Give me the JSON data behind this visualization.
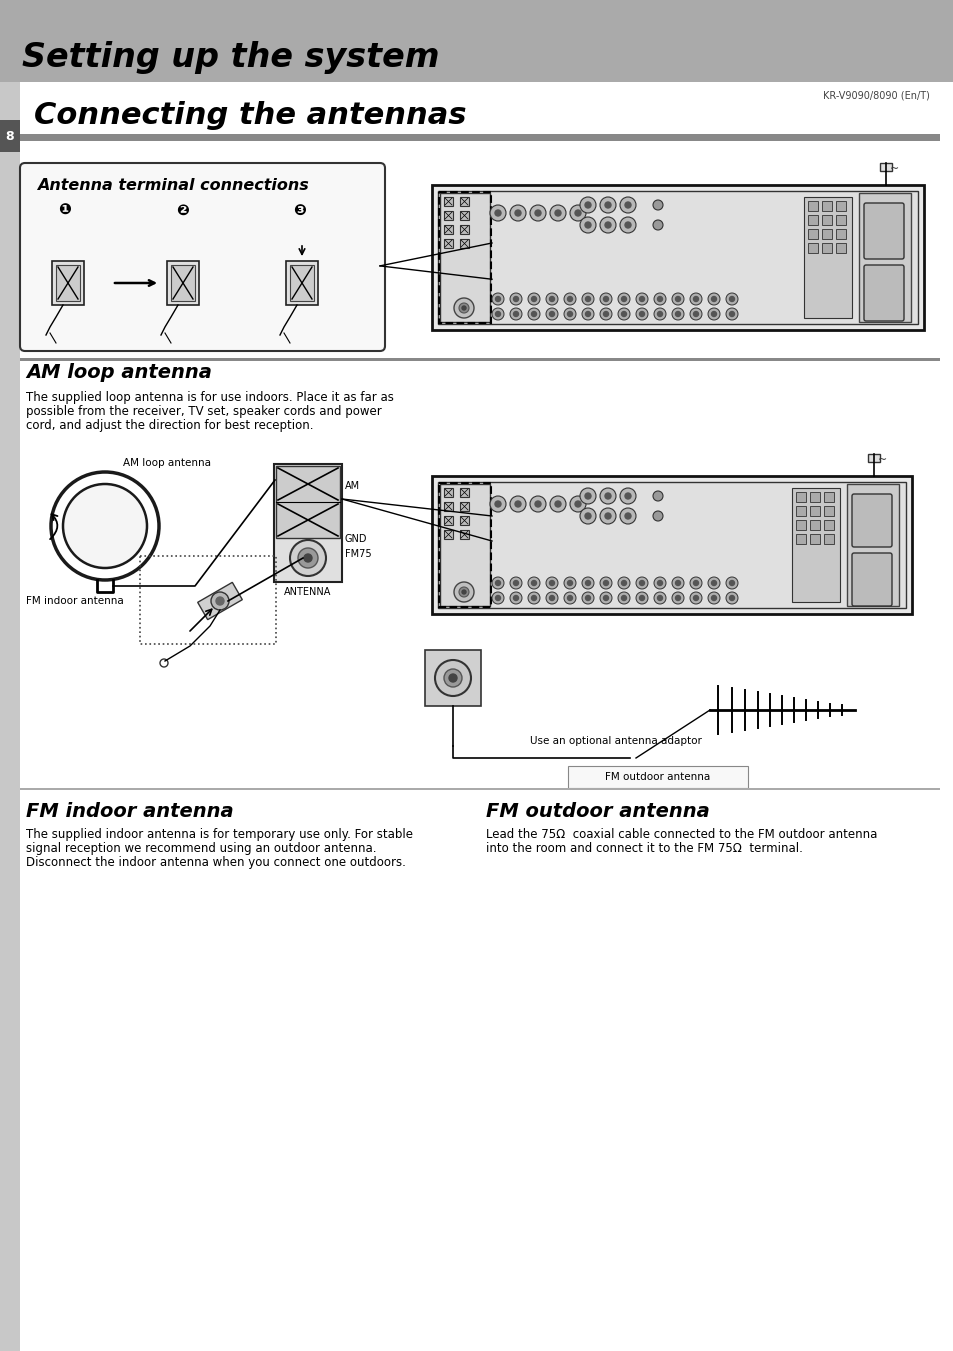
{
  "bg_color": "#ffffff",
  "header_bg": "#aaaaaa",
  "header_text": "Setting up the system",
  "header_text_color": "#000000",
  "model_text": "KR-V9090/8090 (En/T)",
  "page_num": "8",
  "section_title": "Connecting the antennas",
  "section_title_color": "#000000",
  "section_bar_color": "#888888",
  "box_title": "Antenna terminal connections",
  "circle_labels": [
    "❶",
    "❷",
    "❸"
  ],
  "am_title": "AM loop antenna",
  "am_body_lines": [
    "The supplied loop antenna is for use indoors. Place it as far as",
    "possible from the receiver, TV set, speaker cords and power",
    "cord, and adjust the direction for best reception."
  ],
  "fm_indoor_title": "FM indoor antenna",
  "fm_indoor_body_lines": [
    "The supplied indoor antenna is for temporary use only. For stable",
    "signal reception we recommend using an outdoor antenna.",
    "Disconnect the indoor antenna when you connect one outdoors."
  ],
  "fm_outdoor_title": "FM outdoor antenna",
  "fm_outdoor_body_lines": [
    "Lead the 75Ω  coaxial cable connected to the FM outdoor antenna",
    "into the room and connect it to the FM 75Ω  terminal."
  ],
  "fm_indoor_label": "FM indoor antenna",
  "am_loop_label": "AM loop antenna",
  "fm_outdoor_label": "FM outdoor antenna",
  "use_adaptor_label": "Use an optional antenna adaptor",
  "antenna_labels_right": [
    "AM",
    "GND",
    "FM75"
  ],
  "antenna_bottom_label": "ANTENNA",
  "left_bar_color": "#c8c8c8",
  "page_box_color": "#555555"
}
